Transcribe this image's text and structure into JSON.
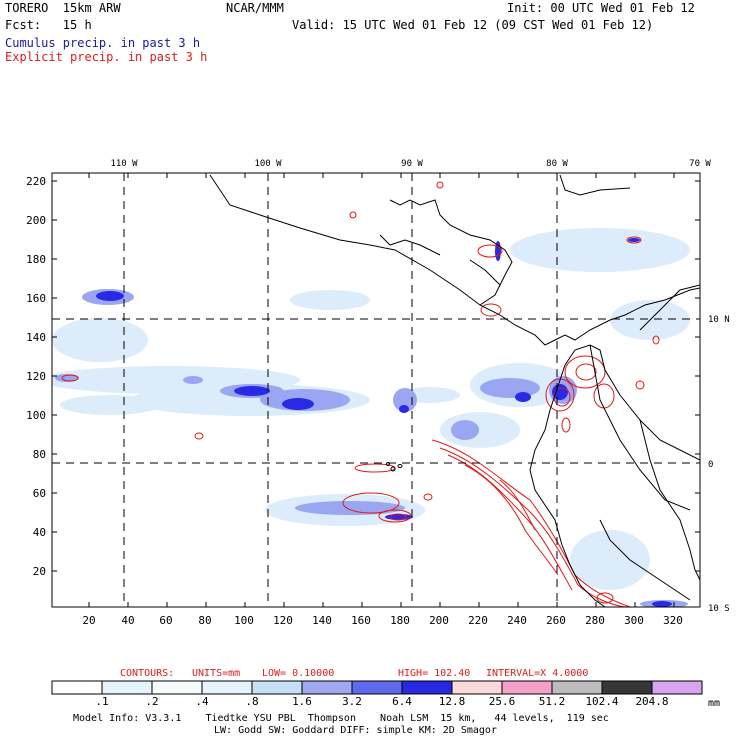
{
  "header": {
    "model": "TORERO  15km ARW",
    "org": "NCAR/MMM",
    "init": "Init: 00 UTC Wed 01 Feb 12",
    "fcst": "Fcst:   15 h",
    "valid": "Valid: 15 UTC Wed 01 Feb 12 (09 CST Wed 01 Feb 12)",
    "line1": "Cumulus precip. in past 3 h",
    "line2": "Explicit precip. in past 3 h"
  },
  "axes": {
    "lon_labels": [
      "110 W",
      "100 W",
      "90 W",
      "80 W",
      "70 W"
    ],
    "lat_labels": [
      "10 N",
      "0",
      "10 S"
    ],
    "y_ticks": [
      "220",
      "200",
      "180",
      "160",
      "140",
      "120",
      "100",
      "80",
      "60",
      "40",
      "20"
    ],
    "x_ticks": [
      "20",
      "40",
      "60",
      "80",
      "100",
      "120",
      "140",
      "160",
      "180",
      "200",
      "220",
      "240",
      "260",
      "280",
      "300",
      "320"
    ]
  },
  "contour_info": {
    "label": "CONTOURS:",
    "units": "UNITS=mm",
    "low": "LOW= 0.10000",
    "high": "HIGH= 102.40",
    "interval": "INTERVAL=X  4.0000"
  },
  "colorbar": {
    "colors": [
      "#ffffff",
      "#e4f4fc",
      "#f4fcfc",
      "#e6f2fc",
      "#c6e0f8",
      "#a0a8f4",
      "#6068ec",
      "#2828e0",
      "#f8dada",
      "#f4a0c8",
      "#bcbcbc",
      "#363636",
      "#d8a4f0"
    ],
    "labels": [
      ".1",
      ".2",
      ".4",
      ".8",
      "1.6",
      "3.2",
      "6.4",
      "12.8",
      "25.6",
      "51.2",
      "102.4",
      "204.8"
    ],
    "unit": "mm"
  },
  "footer": {
    "line1": "Model Info: V3.3.1    Tiedtke YSU PBL  Thompson    Noah LSM  15 km,   44 levels,  119 sec",
    "line2": "LW: Godd SW: Goddard DIFF: simple KM: 2D Smagor"
  },
  "colors": {
    "precip_light": "#dcecfa",
    "precip_mid": "#9aa6f2",
    "precip_dark": "#2a2ae6",
    "explicit": "#e01818"
  }
}
